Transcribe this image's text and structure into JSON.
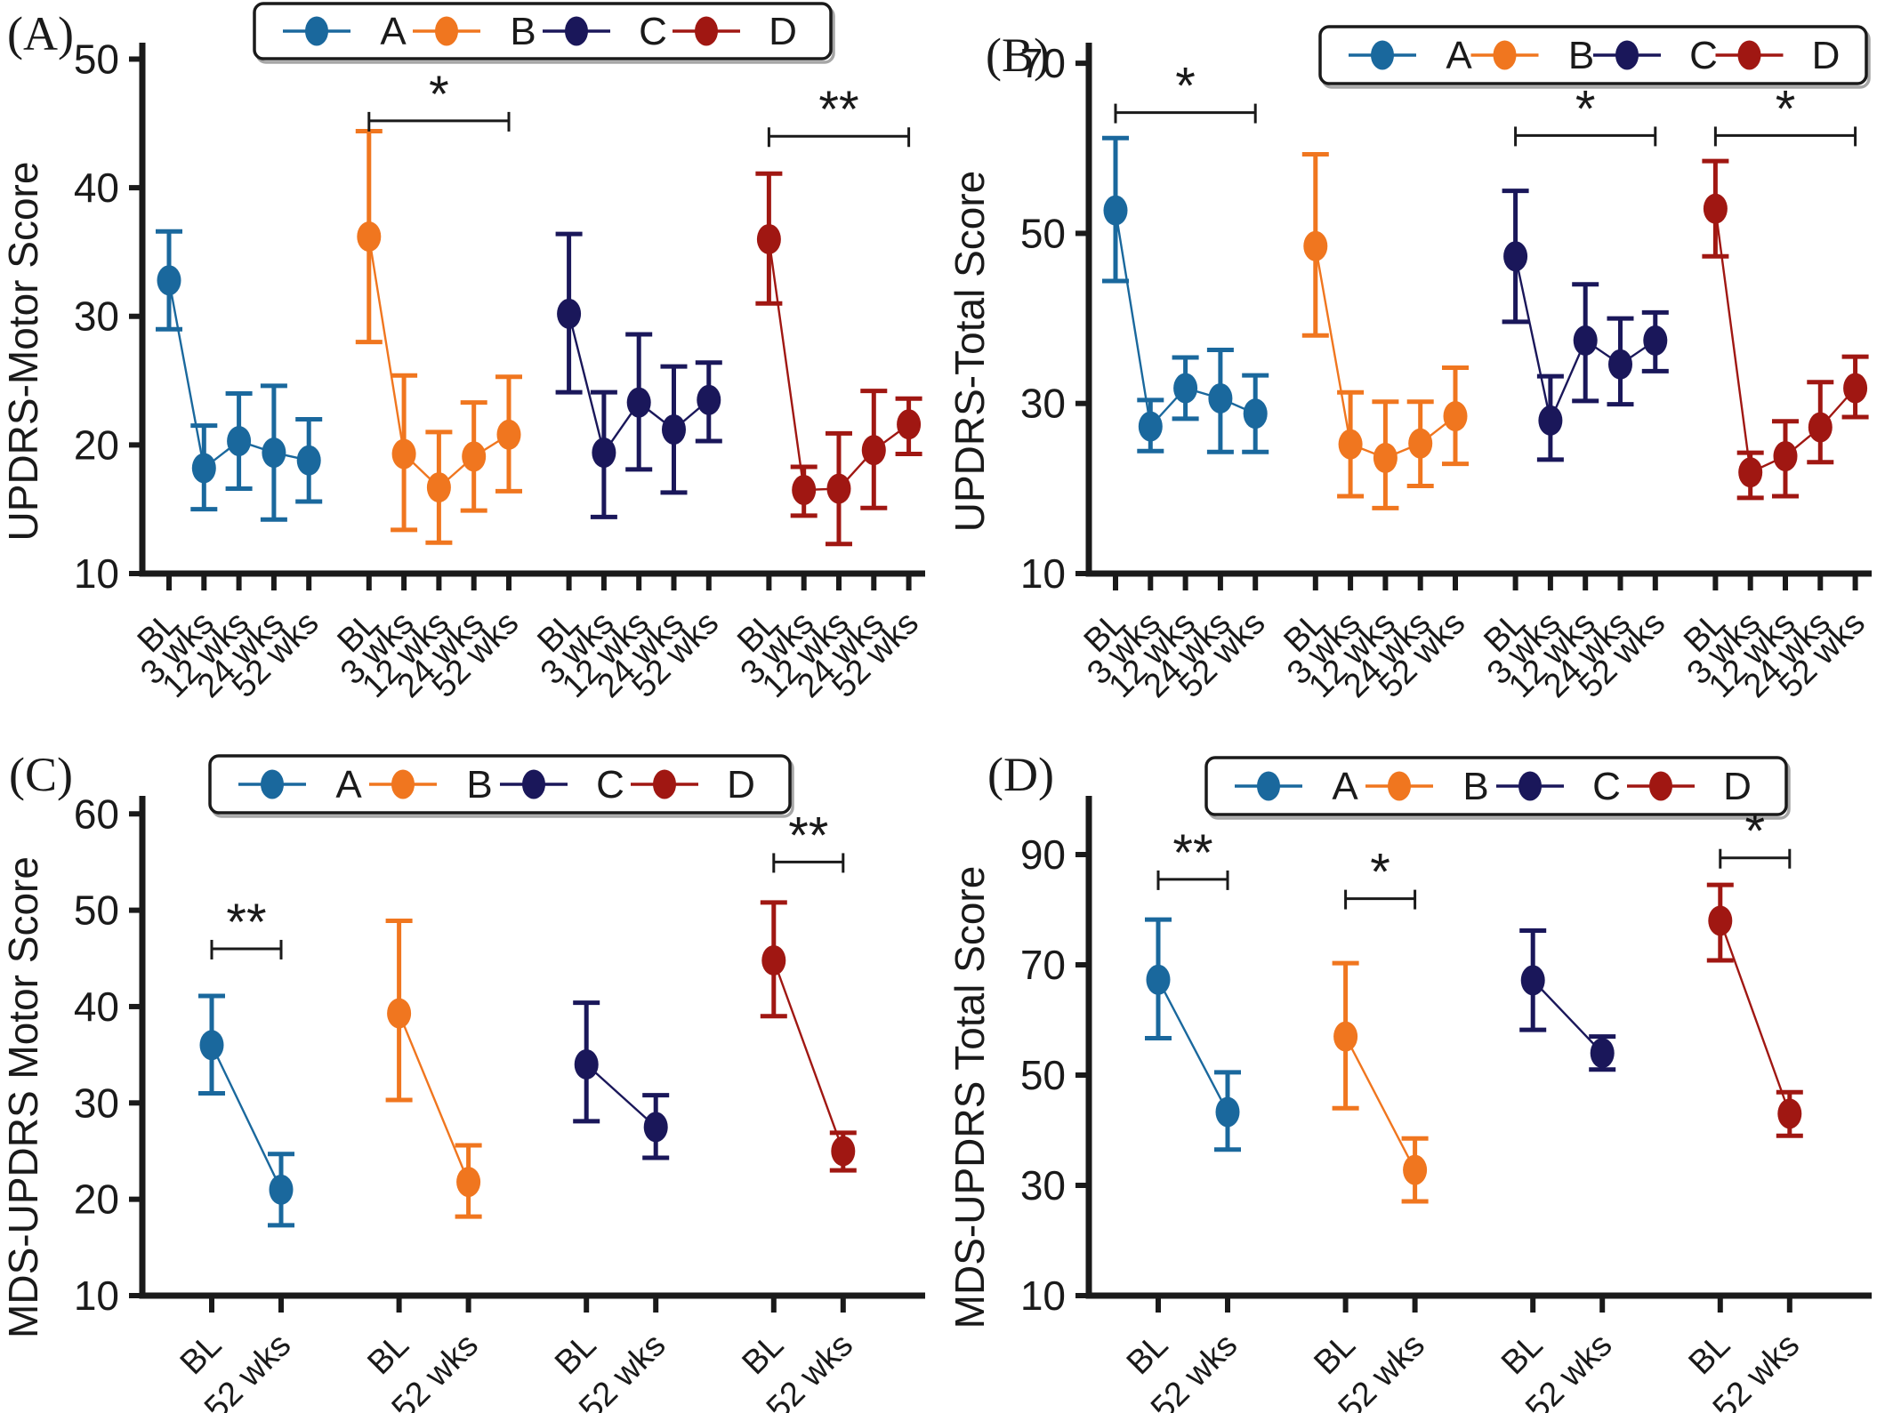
{
  "figure": {
    "background": "#ffffff",
    "text_color": "#1a1a1a",
    "axis_color": "#1a1a1a"
  },
  "legend": {
    "entries": [
      {
        "label": "A",
        "color": "#1a689d"
      },
      {
        "label": "B",
        "color": "#f0761f"
      },
      {
        "label": "C",
        "color": "#1a175a"
      },
      {
        "label": "D",
        "color": "#a01712"
      }
    ]
  },
  "chart_data": [
    {
      "id": "A",
      "panel_label": "(A)",
      "type": "line",
      "ylabel": "UPDRS-Motor Score",
      "ylim": [
        10,
        51
      ],
      "yticks": [
        10,
        20,
        30,
        40,
        50
      ],
      "categories": [
        "BL",
        "3 wks",
        "12 wks",
        "24 wks",
        "52 wks"
      ],
      "series": [
        {
          "name": "A",
          "color": "#1a689d",
          "means": [
            32.8,
            18.2,
            20.3,
            19.4,
            18.8
          ],
          "lo": [
            29.0,
            15.0,
            16.6,
            14.2,
            15.6
          ],
          "hi": [
            36.6,
            21.5,
            24.0,
            24.6,
            22.0
          ]
        },
        {
          "name": "B",
          "color": "#f0761f",
          "means": [
            36.2,
            19.3,
            16.7,
            19.1,
            20.8
          ],
          "lo": [
            28.0,
            13.4,
            12.4,
            14.9,
            16.4
          ],
          "hi": [
            44.4,
            25.4,
            21.0,
            23.3,
            25.3
          ]
        },
        {
          "name": "C",
          "color": "#1a175a",
          "means": [
            30.2,
            19.4,
            23.3,
            21.2,
            23.5
          ],
          "lo": [
            24.1,
            14.4,
            18.1,
            16.3,
            20.3
          ],
          "hi": [
            36.4,
            24.1,
            28.6,
            26.1,
            26.4
          ]
        },
        {
          "name": "D",
          "color": "#a01712",
          "means": [
            36.0,
            16.5,
            16.6,
            19.6,
            21.6
          ],
          "lo": [
            31.0,
            14.5,
            12.3,
            15.1,
            19.3
          ],
          "hi": [
            41.1,
            18.3,
            20.9,
            24.2,
            23.6
          ]
        }
      ],
      "brackets": [
        {
          "series": "B",
          "from": 0,
          "to": 4,
          "label": "*",
          "y": 45.2
        },
        {
          "series": "D",
          "from": 0,
          "to": 4,
          "label": "**",
          "y": 44.0
        }
      ]
    },
    {
      "id": "B",
      "panel_label": "(B)",
      "type": "line",
      "ylabel": "UPDRS-Total Score",
      "ylim": [
        10,
        72
      ],
      "yticks": [
        10,
        30,
        50,
        70
      ],
      "categories": [
        "BL",
        "3 wks",
        "12 wks",
        "24 wks",
        "52 wks"
      ],
      "series": [
        {
          "name": "A",
          "color": "#1a689d",
          "means": [
            52.7,
            27.3,
            31.8,
            30.6,
            28.8
          ],
          "lo": [
            44.4,
            24.4,
            28.2,
            24.3,
            24.3
          ],
          "hi": [
            61.2,
            30.4,
            35.4,
            36.3,
            33.3
          ]
        },
        {
          "name": "B",
          "color": "#f0761f",
          "means": [
            48.5,
            25.2,
            23.6,
            25.3,
            28.5
          ],
          "lo": [
            38.0,
            19.1,
            17.7,
            20.3,
            22.9
          ],
          "hi": [
            59.3,
            31.3,
            30.2,
            30.2,
            34.2
          ]
        },
        {
          "name": "C",
          "color": "#1a175a",
          "means": [
            47.3,
            28.0,
            37.4,
            34.6,
            37.4
          ],
          "lo": [
            39.6,
            23.4,
            30.3,
            29.9,
            33.8
          ],
          "hi": [
            55.0,
            33.2,
            44.0,
            40.0,
            40.7
          ]
        },
        {
          "name": "D",
          "color": "#a01712",
          "means": [
            52.9,
            21.9,
            23.8,
            27.2,
            31.8
          ],
          "lo": [
            47.3,
            18.9,
            19.1,
            23.1,
            28.4
          ],
          "hi": [
            58.5,
            24.2,
            27.9,
            32.5,
            35.5
          ]
        }
      ],
      "brackets": [
        {
          "series": "A",
          "from": 0,
          "to": 4,
          "label": "*",
          "y": 64.2
        },
        {
          "series": "C",
          "from": 0,
          "to": 4,
          "label": "*",
          "y": 61.5
        },
        {
          "series": "D",
          "from": 0,
          "to": 4,
          "label": "*",
          "y": 61.5
        }
      ]
    },
    {
      "id": "C",
      "panel_label": "(C)",
      "type": "line",
      "ylabel": "MDS-UPDRS Motor Score",
      "ylim": [
        10,
        61.5
      ],
      "yticks": [
        10,
        20,
        30,
        40,
        50,
        60
      ],
      "categories": [
        "BL",
        "52 wks"
      ],
      "series": [
        {
          "name": "A",
          "color": "#1a689d",
          "means": [
            36.0,
            21.0
          ],
          "lo": [
            31.0,
            17.3
          ],
          "hi": [
            41.1,
            24.7
          ]
        },
        {
          "name": "B",
          "color": "#f0761f",
          "means": [
            39.3,
            21.8
          ],
          "lo": [
            30.3,
            18.2
          ],
          "hi": [
            48.9,
            25.6
          ]
        },
        {
          "name": "C",
          "color": "#1a175a",
          "means": [
            34.0,
            27.5
          ],
          "lo": [
            28.1,
            24.3
          ],
          "hi": [
            40.4,
            30.8
          ]
        },
        {
          "name": "D",
          "color": "#a01712",
          "means": [
            44.8,
            25.0
          ],
          "lo": [
            39.0,
            23.0
          ],
          "hi": [
            50.8,
            26.9
          ]
        }
      ],
      "brackets": [
        {
          "series": "A",
          "from": 0,
          "to": 1,
          "label": "**",
          "y": 46.0
        },
        {
          "series": "D",
          "from": 0,
          "to": 1,
          "label": "**",
          "y": 55.0
        }
      ]
    },
    {
      "id": "D",
      "panel_label": "(D)",
      "type": "line",
      "ylabel": "MDS-UPDRS Total Score",
      "ylim": [
        10,
        100
      ],
      "yticks": [
        10,
        30,
        50,
        70,
        90
      ],
      "categories": [
        "BL",
        "52 wks"
      ],
      "series": [
        {
          "name": "A",
          "color": "#1a689d",
          "means": [
            67.3,
            43.3
          ],
          "lo": [
            56.7,
            36.5
          ],
          "hi": [
            78.2,
            50.5
          ]
        },
        {
          "name": "B",
          "color": "#f0761f",
          "means": [
            57.0,
            32.8
          ],
          "lo": [
            44.0,
            27.1
          ],
          "hi": [
            70.3,
            38.5
          ]
        },
        {
          "name": "C",
          "color": "#1a175a",
          "means": [
            67.2,
            54.0
          ],
          "lo": [
            58.2,
            51.0
          ],
          "hi": [
            76.2,
            57.0
          ]
        },
        {
          "name": "D",
          "color": "#a01712",
          "means": [
            78.0,
            43.0
          ],
          "lo": [
            70.8,
            39.0
          ],
          "hi": [
            84.5,
            46.9
          ]
        }
      ],
      "brackets": [
        {
          "series": "A",
          "from": 0,
          "to": 1,
          "label": "**",
          "y": 85.5
        },
        {
          "series": "B",
          "from": 0,
          "to": 1,
          "label": "*",
          "y": 82.0
        },
        {
          "series": "D",
          "from": 0,
          "to": 1,
          "label": "*",
          "y": 89.4
        }
      ]
    }
  ]
}
